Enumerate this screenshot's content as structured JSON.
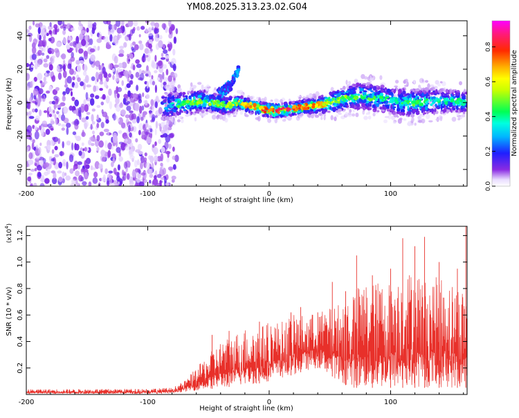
{
  "title": "YM08.2025.313.23.02.G04",
  "colors": {
    "axis": "#000000",
    "snr_line": "#e8302a",
    "background": "#ffffff"
  },
  "chart_data": [
    {
      "type": "heatmap",
      "title": "YM08.2025.313.23.02.G04",
      "xlabel": "Height of straight line (km)",
      "ylabel": "Frequency (Hz)",
      "xlim": [
        -200,
        163
      ],
      "ylim": [
        -50,
        49
      ],
      "xticks": [
        -200,
        -100,
        0,
        100
      ],
      "xtick_labels": [
        "-200",
        "-100",
        "0",
        "100"
      ],
      "yticks": [
        -40,
        -20,
        0,
        20,
        40
      ],
      "ytick_labels": [
        "-40",
        "-20",
        "0",
        "20",
        "40"
      ],
      "noise_region_x": [
        -200,
        -80
      ],
      "signal_band": {
        "x": [
          -85,
          -75,
          -65,
          -55,
          -45,
          -35,
          -25,
          -15,
          -5,
          5,
          15,
          25,
          35,
          45,
          55,
          65,
          75,
          85,
          95,
          105,
          115,
          125,
          135,
          145,
          155,
          163
        ],
        "center": [
          -2,
          -1,
          0,
          1,
          0,
          -2,
          0,
          -2,
          -4,
          -5,
          -4,
          -3,
          -2,
          -1,
          1,
          3,
          4,
          3,
          2,
          1,
          0,
          0,
          1,
          1,
          1,
          0
        ],
        "half_width": [
          6,
          5,
          5,
          5,
          4,
          4,
          3,
          3,
          3,
          3,
          3,
          3,
          3,
          4,
          5,
          5,
          6,
          6,
          6,
          6,
          6,
          6,
          6,
          5,
          5,
          5
        ],
        "peak_amplitude": [
          0.4,
          0.5,
          0.55,
          0.55,
          0.55,
          0.6,
          0.7,
          0.75,
          0.85,
          0.9,
          0.9,
          0.85,
          0.8,
          0.7,
          0.6,
          0.55,
          0.5,
          0.5,
          0.45,
          0.45,
          0.5,
          0.5,
          0.45,
          0.45,
          0.45,
          0.4
        ]
      },
      "branch_segment": {
        "x": [
          -42,
          -32,
          -25
        ],
        "freq": [
          5,
          10,
          20
        ]
      },
      "colorbar": {
        "label": "Normalized spectral amplitude",
        "range": [
          0,
          0.95
        ],
        "ticks": [
          0.0,
          0.2,
          0.4,
          0.6,
          0.8
        ],
        "tick_labels": [
          "0.0",
          "0.2",
          "0.4",
          "0.6",
          "0.8"
        ]
      }
    },
    {
      "type": "line",
      "xlabel": "Height of straight line (km)",
      "ylabel": "SNR (10 * v/v)",
      "scale_label": "(x10",
      "scale_exponent": "4",
      "scale_close": ")",
      "xlim": [
        -200,
        163
      ],
      "ylim": [
        0,
        1.27
      ],
      "xticks": [
        -200,
        -100,
        0,
        100
      ],
      "xtick_labels": [
        "-200",
        "-100",
        "0",
        "100"
      ],
      "yticks": [
        0.2,
        0.4,
        0.6,
        0.8,
        1.0,
        1.2
      ],
      "ytick_labels": [
        "0.2",
        "0.4",
        "0.6",
        "0.8",
        "1.0",
        "1.2"
      ],
      "envelope": {
        "x": [
          -200,
          -150,
          -100,
          -80,
          -70,
          -60,
          -50,
          -40,
          -30,
          -20,
          -10,
          0,
          10,
          20,
          30,
          40,
          50,
          60,
          70,
          80,
          90,
          100,
          110,
          120,
          130,
          140,
          150,
          160,
          163
        ],
        "low": [
          0.005,
          0.005,
          0.005,
          0.01,
          0.02,
          0.03,
          0.04,
          0.05,
          0.06,
          0.07,
          0.08,
          0.1,
          0.12,
          0.15,
          0.18,
          0.2,
          0.15,
          0.08,
          0.05,
          0.05,
          0.05,
          0.05,
          0.05,
          0.05,
          0.05,
          0.05,
          0.05,
          0.05,
          0.05
        ],
        "high": [
          0.04,
          0.04,
          0.045,
          0.05,
          0.1,
          0.2,
          0.3,
          0.4,
          0.45,
          0.5,
          0.5,
          0.55,
          0.55,
          0.6,
          0.6,
          0.62,
          0.65,
          0.7,
          0.8,
          0.85,
          0.85,
          0.85,
          0.9,
          0.95,
          0.85,
          0.9,
          0.85,
          0.8,
          0.8
        ]
      },
      "spikes": [
        {
          "x": -47,
          "y": 0.45
        },
        {
          "x": -33,
          "y": 0.48
        },
        {
          "x": -8,
          "y": 0.55
        },
        {
          "x": 18,
          "y": 0.62
        },
        {
          "x": 26,
          "y": 0.66
        },
        {
          "x": 40,
          "y": 0.62
        },
        {
          "x": 52,
          "y": 0.85
        },
        {
          "x": 63,
          "y": 0.78
        },
        {
          "x": 72,
          "y": 1.05
        },
        {
          "x": 85,
          "y": 0.9
        },
        {
          "x": 100,
          "y": 0.95
        },
        {
          "x": 110,
          "y": 1.18
        },
        {
          "x": 120,
          "y": 1.12
        },
        {
          "x": 128,
          "y": 1.19
        },
        {
          "x": 140,
          "y": 1.0
        },
        {
          "x": 155,
          "y": 0.95
        },
        {
          "x": 162,
          "y": 1.27
        }
      ]
    }
  ]
}
